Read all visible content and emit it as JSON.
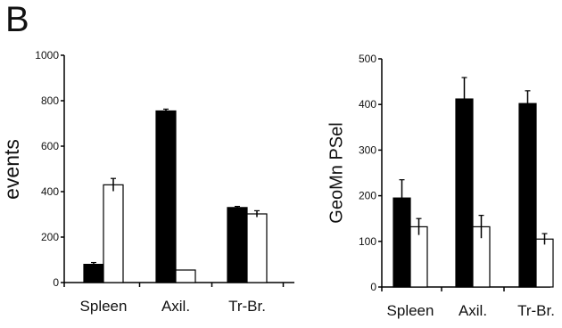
{
  "panel_label": "B",
  "chart_data": [
    {
      "type": "bar",
      "ylabel": "events",
      "categories": [
        "Spleen",
        "Axil.",
        "Tr-Br."
      ],
      "ylim": [
        0,
        1000
      ],
      "yticks": [
        0,
        200,
        400,
        600,
        800,
        1000
      ],
      "series": [
        {
          "color": "#000000",
          "values": [
            80,
            755,
            330
          ],
          "errors": [
            8,
            8,
            5
          ]
        },
        {
          "color": "#ffffff",
          "values": [
            430,
            55,
            302
          ],
          "errors": [
            28,
            0,
            14
          ]
        }
      ]
    },
    {
      "type": "bar",
      "ylabel": "GeoMn  PSel",
      "categories": [
        "Spleen",
        "Axil.",
        "Tr-Br."
      ],
      "ylim": [
        0,
        500
      ],
      "yticks": [
        0,
        100,
        200,
        300,
        400,
        500
      ],
      "series": [
        {
          "color": "#000000",
          "values": [
            195,
            412,
            402
          ],
          "errors": [
            40,
            47,
            28
          ]
        },
        {
          "color": "#ffffff",
          "values": [
            132,
            132,
            105
          ],
          "errors": [
            18,
            25,
            12
          ]
        }
      ]
    }
  ]
}
